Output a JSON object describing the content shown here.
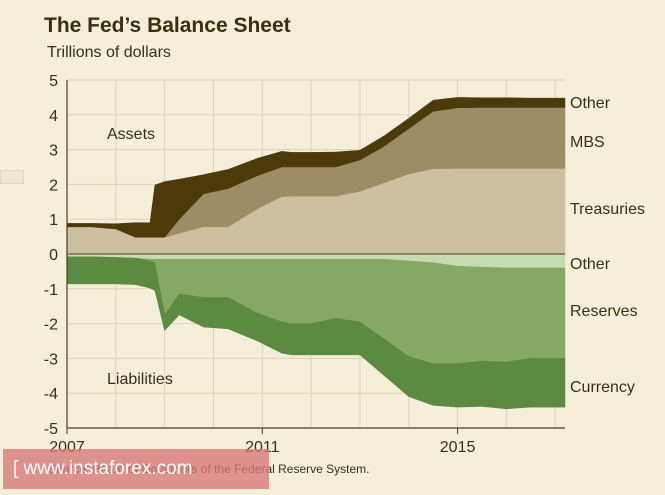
{
  "chart_data": {
    "type": "area",
    "title": "The Fed’s Balance Sheet",
    "subtitle": "Trillions of dollars",
    "source": "Source: Board of Governors of the Federal Reserve System.",
    "ylim": [
      -5,
      5
    ],
    "yticks": [
      "5",
      "4",
      "3",
      "2",
      "1",
      "0",
      "-1",
      "-2",
      "-3",
      "-4",
      "-5"
    ],
    "xlim": [
      2007,
      2017.2
    ],
    "xticks": [
      "2007",
      "2011",
      "2015"
    ],
    "grid": true,
    "panel_labels": {
      "assets": "Assets",
      "liabilities": "Liabilities"
    },
    "x": [
      2007.0,
      2007.5,
      2008.0,
      2008.4,
      2008.7,
      2008.8,
      2009.0,
      2009.3,
      2009.8,
      2010.3,
      2010.9,
      2011.4,
      2011.6,
      2012.0,
      2012.5,
      2013.0,
      2013.5,
      2014.0,
      2014.5,
      2015.0,
      2015.5,
      2016.0,
      2016.5,
      2017.2
    ],
    "assets": {
      "colors": {
        "Other": "#4d3a0b",
        "MBS": "#9d8c66",
        "Treasuries": "#cdbfa1"
      },
      "series": [
        {
          "name": "Treasuries",
          "values": [
            0.78,
            0.78,
            0.72,
            0.48,
            0.48,
            0.48,
            0.48,
            0.6,
            0.78,
            0.78,
            1.3,
            1.65,
            1.66,
            1.66,
            1.66,
            1.8,
            2.05,
            2.3,
            2.45,
            2.46,
            2.46,
            2.46,
            2.46,
            2.46
          ]
        },
        {
          "name": "MBS",
          "values": [
            0.0,
            0.0,
            0.0,
            0.0,
            0.0,
            0.0,
            0.0,
            0.4,
            0.95,
            1.1,
            0.95,
            0.85,
            0.84,
            0.84,
            0.84,
            0.9,
            1.05,
            1.3,
            1.65,
            1.74,
            1.75,
            1.75,
            1.75,
            1.75
          ]
        },
        {
          "name": "Other",
          "values": [
            0.1,
            0.1,
            0.15,
            0.42,
            0.42,
            1.5,
            1.6,
            1.15,
            0.55,
            0.55,
            0.5,
            0.45,
            0.42,
            0.42,
            0.43,
            0.28,
            0.3,
            0.3,
            0.32,
            0.3,
            0.28,
            0.28,
            0.27,
            0.27
          ]
        }
      ]
    },
    "liabilities": {
      "colors": {
        "Other": "#c7dbb0",
        "Reserves": "#86a865",
        "Currency": "#5b8a40"
      },
      "series": [
        {
          "name": "Other",
          "values": [
            0.08,
            0.08,
            0.1,
            0.12,
            0.15,
            0.15,
            0.15,
            0.15,
            0.15,
            0.15,
            0.15,
            0.15,
            0.15,
            0.15,
            0.15,
            0.15,
            0.15,
            0.2,
            0.25,
            0.35,
            0.38,
            0.4,
            0.4,
            0.4
          ]
        },
        {
          "name": "Reserves",
          "values": [
            0.0,
            0.0,
            0.0,
            0.0,
            0.05,
            0.1,
            1.6,
            1.0,
            1.1,
            1.1,
            1.55,
            1.8,
            1.85,
            1.85,
            1.7,
            1.8,
            2.3,
            2.75,
            2.9,
            2.8,
            2.7,
            2.7,
            2.6,
            2.6
          ]
        },
        {
          "name": "Currency",
          "values": [
            0.78,
            0.78,
            0.76,
            0.76,
            0.78,
            0.8,
            0.45,
            0.6,
            0.85,
            0.9,
            0.8,
            0.9,
            0.9,
            0.9,
            1.05,
            0.95,
            1.05,
            1.15,
            1.2,
            1.25,
            1.3,
            1.35,
            1.4,
            1.4
          ]
        }
      ]
    },
    "right_labels": {
      "assets": [
        "Other",
        "MBS",
        "Treasuries"
      ],
      "liabilities": [
        "Other",
        "Reserves",
        "Currency"
      ]
    }
  },
  "watermark": {
    "text": "[  www.instaforex.com"
  }
}
